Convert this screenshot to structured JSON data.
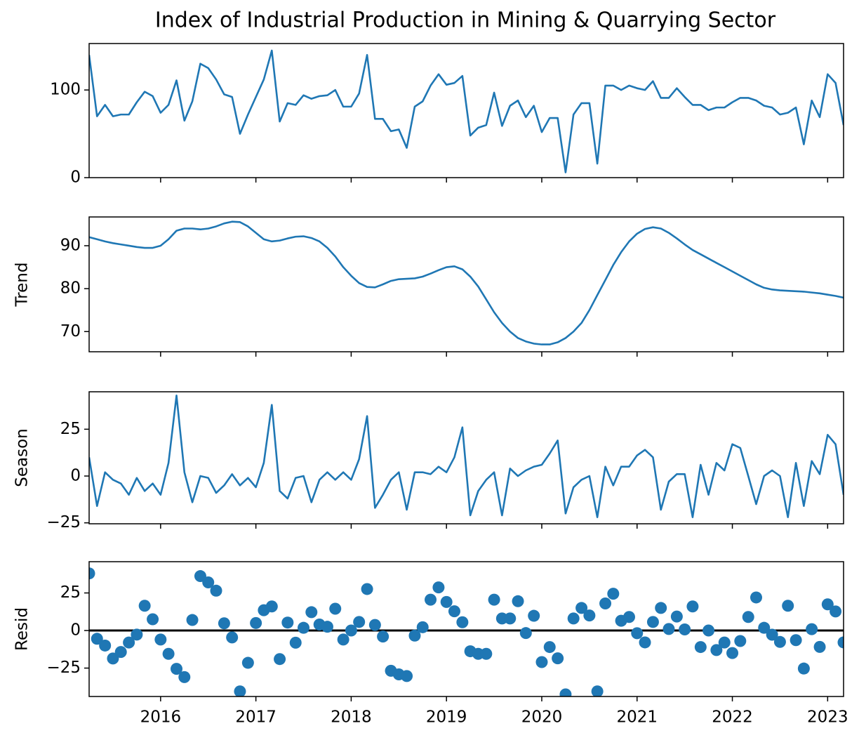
{
  "chart_data": [
    {
      "type": "line",
      "title": "Index of Industrial Production in Mining & Quarrying Sector",
      "color": "#1f77b4",
      "x": [
        2015.25,
        2015.333,
        2015.417,
        2015.5,
        2015.583,
        2015.667,
        2015.75,
        2015.833,
        2015.917,
        2016,
        2016.083,
        2016.167,
        2016.25,
        2016.333,
        2016.417,
        2016.5,
        2016.583,
        2016.667,
        2016.75,
        2016.833,
        2016.917,
        2017,
        2017.083,
        2017.167,
        2017.25,
        2017.333,
        2017.417,
        2017.5,
        2017.583,
        2017.667,
        2017.75,
        2017.833,
        2017.917,
        2018,
        2018.083,
        2018.167,
        2018.25,
        2018.333,
        2018.417,
        2018.5,
        2018.583,
        2018.667,
        2018.75,
        2018.833,
        2018.917,
        2019,
        2019.083,
        2019.167,
        2019.25,
        2019.333,
        2019.417,
        2019.5,
        2019.583,
        2019.667,
        2019.75,
        2019.833,
        2019.917,
        2020,
        2020.083,
        2020.167,
        2020.25,
        2020.333,
        2020.417,
        2020.5,
        2020.583,
        2020.667,
        2020.75,
        2020.833,
        2020.917,
        2021,
        2021.083,
        2021.167,
        2021.25,
        2021.333,
        2021.417,
        2021.5,
        2021.583,
        2021.667,
        2021.75,
        2021.833,
        2021.917,
        2022,
        2022.083,
        2022.167,
        2022.25,
        2022.333,
        2022.417,
        2022.5,
        2022.583,
        2022.667,
        2022.75,
        2022.833,
        2022.917,
        2023,
        2023.083,
        2023.167
      ],
      "values": [
        140,
        70,
        83,
        70,
        72,
        72,
        86,
        98,
        93,
        74,
        83,
        111,
        65,
        87,
        130,
        125,
        112,
        95,
        92,
        50,
        72,
        92,
        112,
        145,
        64,
        85,
        83,
        94,
        90,
        93,
        94,
        100,
        81,
        81,
        96,
        140,
        67,
        67,
        53,
        55,
        34,
        81,
        87,
        105,
        118,
        106,
        108,
        116,
        48,
        57,
        60,
        97,
        59,
        82,
        88,
        69,
        82,
        52,
        68,
        68,
        6,
        72,
        85,
        85,
        16,
        105,
        105,
        100,
        105,
        102,
        100,
        110,
        91,
        91,
        102,
        92,
        83,
        83,
        77,
        80,
        80,
        86,
        91,
        91,
        88,
        82,
        80,
        72,
        74,
        80,
        38,
        88,
        69,
        118,
        108,
        60
      ],
      "xlim": [
        2015.25,
        2023.167
      ],
      "xticks": [
        2016,
        2017,
        2018,
        2019,
        2020,
        2021,
        2022,
        2023
      ],
      "ylim": [
        0,
        153
      ],
      "yticks": [
        0,
        100
      ]
    },
    {
      "type": "line",
      "ylabel": "Trend",
      "color": "#1f77b4",
      "x": [
        2015.25,
        2015.333,
        2015.417,
        2015.5,
        2015.583,
        2015.667,
        2015.75,
        2015.833,
        2015.917,
        2016,
        2016.083,
        2016.167,
        2016.25,
        2016.333,
        2016.417,
        2016.5,
        2016.583,
        2016.667,
        2016.75,
        2016.833,
        2016.917,
        2017,
        2017.083,
        2017.167,
        2017.25,
        2017.333,
        2017.417,
        2017.5,
        2017.583,
        2017.667,
        2017.75,
        2017.833,
        2017.917,
        2018,
        2018.083,
        2018.167,
        2018.25,
        2018.333,
        2018.417,
        2018.5,
        2018.583,
        2018.667,
        2018.75,
        2018.833,
        2018.917,
        2019,
        2019.083,
        2019.167,
        2019.25,
        2019.333,
        2019.417,
        2019.5,
        2019.583,
        2019.667,
        2019.75,
        2019.833,
        2019.917,
        2020,
        2020.083,
        2020.167,
        2020.25,
        2020.333,
        2020.417,
        2020.5,
        2020.583,
        2020.667,
        2020.75,
        2020.833,
        2020.917,
        2021,
        2021.083,
        2021.167,
        2021.25,
        2021.333,
        2021.417,
        2021.5,
        2021.583,
        2021.667,
        2021.75,
        2021.833,
        2021.917,
        2022,
        2022.083,
        2022.167,
        2022.25,
        2022.333,
        2022.417,
        2022.5,
        2022.583,
        2022.667,
        2022.75,
        2022.833,
        2022.917,
        2023,
        2023.083,
        2023.167
      ],
      "values": [
        92,
        91.5,
        91,
        90.6,
        90.3,
        90,
        89.7,
        89.5,
        89.5,
        90,
        91.5,
        93.5,
        94,
        94,
        93.8,
        94,
        94.5,
        95.2,
        95.6,
        95.5,
        94.5,
        93,
        91.5,
        91,
        91.2,
        91.7,
        92.1,
        92.2,
        91.8,
        91,
        89.5,
        87.5,
        85,
        83,
        81.3,
        80.4,
        80.3,
        81,
        81.8,
        82.2,
        82.3,
        82.4,
        82.8,
        83.5,
        84.3,
        85,
        85.2,
        84.5,
        82.8,
        80.5,
        77.5,
        74.5,
        72,
        70,
        68.5,
        67.7,
        67.2,
        67,
        67,
        67.5,
        68.5,
        70,
        72,
        75,
        78.5,
        82,
        85.5,
        88.5,
        91,
        92.8,
        93.9,
        94.3,
        94,
        93,
        91.7,
        90.3,
        89,
        88,
        87,
        86,
        85,
        84,
        83,
        82,
        81,
        80.2,
        79.8,
        79.6,
        79.5,
        79.4,
        79.3,
        79.1,
        78.9,
        78.6,
        78.3,
        77.9
      ],
      "xlim": [
        2015.25,
        2023.167
      ],
      "xticks": [
        2016,
        2017,
        2018,
        2019,
        2020,
        2021,
        2022,
        2023
      ],
      "ylim": [
        65.3,
        96.7
      ],
      "yticks": [
        70,
        80,
        90
      ]
    },
    {
      "type": "line",
      "ylabel": "Season",
      "color": "#1f77b4",
      "x": [
        2015.25,
        2015.333,
        2015.417,
        2015.5,
        2015.583,
        2015.667,
        2015.75,
        2015.833,
        2015.917,
        2016,
        2016.083,
        2016.167,
        2016.25,
        2016.333,
        2016.417,
        2016.5,
        2016.583,
        2016.667,
        2016.75,
        2016.833,
        2016.917,
        2017,
        2017.083,
        2017.167,
        2017.25,
        2017.333,
        2017.417,
        2017.5,
        2017.583,
        2017.667,
        2017.75,
        2017.833,
        2017.917,
        2018,
        2018.083,
        2018.167,
        2018.25,
        2018.333,
        2018.417,
        2018.5,
        2018.583,
        2018.667,
        2018.75,
        2018.833,
        2018.917,
        2019,
        2019.083,
        2019.167,
        2019.25,
        2019.333,
        2019.417,
        2019.5,
        2019.583,
        2019.667,
        2019.75,
        2019.833,
        2019.917,
        2020,
        2020.083,
        2020.167,
        2020.25,
        2020.333,
        2020.417,
        2020.5,
        2020.583,
        2020.667,
        2020.75,
        2020.833,
        2020.917,
        2021,
        2021.083,
        2021.167,
        2021.25,
        2021.333,
        2021.417,
        2021.5,
        2021.583,
        2021.667,
        2021.75,
        2021.833,
        2021.917,
        2022,
        2022.083,
        2022.167,
        2022.25,
        2022.333,
        2022.417,
        2022.5,
        2022.583,
        2022.667,
        2022.75,
        2022.833,
        2022.917,
        2023,
        2023.083,
        2023.167
      ],
      "values": [
        10,
        -16,
        2,
        -2,
        -4,
        -10,
        -1,
        -8,
        -4,
        -10,
        7,
        43,
        2,
        -14,
        0,
        -1,
        -9,
        -5,
        1,
        -5,
        -1,
        -6,
        7,
        38,
        -8,
        -12,
        -1,
        0,
        -14,
        -2,
        2,
        -2,
        2,
        -2,
        9,
        32,
        -17,
        -10,
        -2,
        2,
        -18,
        2,
        2,
        1,
        5,
        2,
        10,
        26,
        -21,
        -8,
        -2,
        2,
        -21,
        4,
        0,
        3,
        5,
        6,
        12,
        19,
        -20,
        -6,
        -2,
        0,
        -22,
        5,
        -5,
        5,
        5,
        11,
        14,
        10,
        -18,
        -3,
        1,
        1,
        -22,
        6,
        -10,
        7,
        3,
        17,
        15,
        0,
        -15,
        0,
        3,
        0,
        -22,
        7,
        -16,
        8,
        1,
        22,
        17,
        -10
      ],
      "xlim": [
        2015.25,
        2023.167
      ],
      "xticks": [
        2016,
        2017,
        2018,
        2019,
        2020,
        2021,
        2022,
        2023
      ],
      "ylim": [
        -25.5,
        45
      ],
      "yticks": [
        {
          "value": -25,
          "label": "−25"
        },
        0,
        25
      ]
    },
    {
      "type": "scatter",
      "ylabel": "Resid",
      "color": "#1f77b4",
      "hline": 0,
      "x": [
        2015.25,
        2015.333,
        2015.417,
        2015.5,
        2015.583,
        2015.667,
        2015.75,
        2015.833,
        2015.917,
        2016,
        2016.083,
        2016.167,
        2016.25,
        2016.333,
        2016.417,
        2016.5,
        2016.583,
        2016.667,
        2016.75,
        2016.833,
        2016.917,
        2017,
        2017.083,
        2017.167,
        2017.25,
        2017.333,
        2017.417,
        2017.5,
        2017.583,
        2017.667,
        2017.75,
        2017.833,
        2017.917,
        2018,
        2018.083,
        2018.167,
        2018.25,
        2018.333,
        2018.417,
        2018.5,
        2018.583,
        2018.667,
        2018.75,
        2018.833,
        2018.917,
        2019,
        2019.083,
        2019.167,
        2019.25,
        2019.333,
        2019.417,
        2019.5,
        2019.583,
        2019.667,
        2019.75,
        2019.833,
        2019.917,
        2020,
        2020.083,
        2020.167,
        2020.25,
        2020.333,
        2020.417,
        2020.5,
        2020.583,
        2020.667,
        2020.75,
        2020.833,
        2020.917,
        2021,
        2021.083,
        2021.167,
        2021.25,
        2021.333,
        2021.417,
        2021.5,
        2021.583,
        2021.667,
        2021.75,
        2021.833,
        2021.917,
        2022,
        2022.083,
        2022.167,
        2022.25,
        2022.333,
        2022.417,
        2022.5,
        2022.583,
        2022.667,
        2022.75,
        2022.833,
        2022.917,
        2023,
        2023.083,
        2023.167
      ],
      "values": [
        38,
        -5.5,
        -10,
        -18.6,
        -14.3,
        -8,
        -2.7,
        16.5,
        7.5,
        -6,
        -15.5,
        -25.5,
        -31,
        7,
        36.2,
        32,
        26.5,
        4.8,
        -4.6,
        -40.5,
        -21.5,
        5,
        13.5,
        16,
        -19,
        5.3,
        -8.1,
        1.8,
        12.2,
        4,
        2.5,
        14.5,
        -6,
        0,
        5.7,
        27.6,
        3.7,
        -4,
        -26.8,
        -29.2,
        -30.3,
        -3.4,
        2.2,
        20.5,
        28.7,
        19,
        12.8,
        5.5,
        -13.8,
        -15.5,
        -15.5,
        20.5,
        8,
        8,
        19.5,
        -1.7,
        9.8,
        -21,
        -11,
        -18.5,
        -42.5,
        8,
        15,
        10,
        -40.5,
        18,
        24.5,
        6.5,
        9,
        -1.8,
        -7.9,
        5.7,
        15,
        1,
        9.3,
        0.7,
        16,
        -11,
        0,
        -13,
        -8,
        -15,
        -7,
        9,
        22,
        1.8,
        -2.8,
        -7.6,
        16.5,
        -6.4,
        -25.3,
        0.9,
        -10.9,
        17.4,
        12.7,
        -7.9
      ],
      "xlim": [
        2015.25,
        2023.167
      ],
      "xticks": [
        2016,
        2017,
        2018,
        2019,
        2020,
        2021,
        2022,
        2023
      ],
      "ylim": [
        -43.9,
        45.8
      ],
      "yticks": [
        {
          "value": -25,
          "label": "−25"
        },
        0,
        25
      ]
    }
  ]
}
